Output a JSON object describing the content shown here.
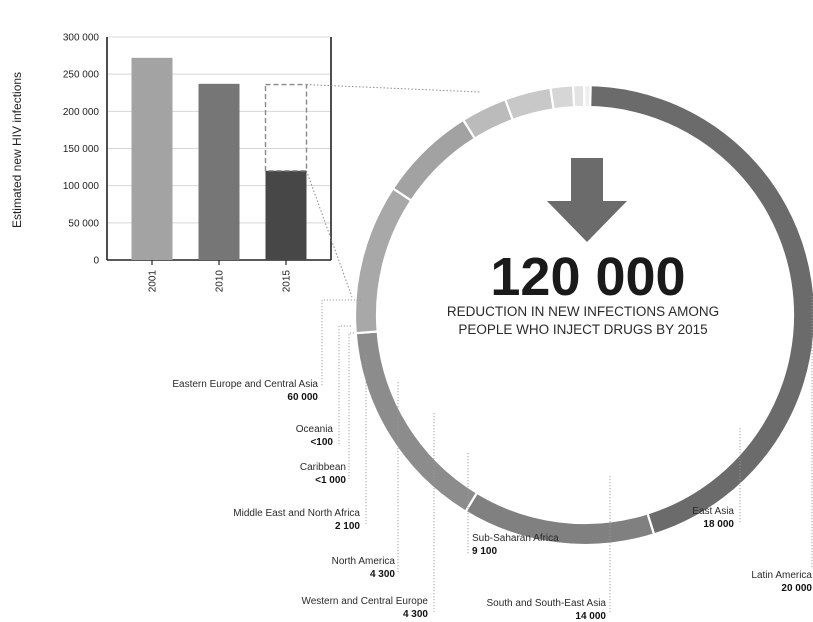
{
  "chart_data": [
    {
      "type": "bar",
      "ylabel": "Estimated new HIV infections",
      "categories": [
        "2001",
        "2010",
        "2015"
      ],
      "values": [
        272000,
        237000,
        120000
      ],
      "target_2015": 236000,
      "ylim": [
        0,
        300000
      ],
      "yticks": [
        0,
        50000,
        100000,
        150000,
        200000,
        250000,
        300000
      ],
      "ytick_labels": [
        "0",
        "50 000",
        "100 000",
        "150 000",
        "200 000",
        "250 000",
        "300 000"
      ],
      "colors": [
        "#a3a3a3",
        "#767676",
        "#474747"
      ]
    },
    {
      "type": "pie",
      "headline": "120 000",
      "subtitle_lines": [
        "REDUCTION IN NEW INFECTIONS AMONG",
        "PEOPLE WHO INJECT DRUGS BY 2015"
      ],
      "regions": [
        {
          "name": "Eastern Europe and Central Asia",
          "value_label": "60 000",
          "value": 60000
        },
        {
          "name": "East Asia",
          "value_label": "18 000",
          "value": 18000
        },
        {
          "name": "Latin America",
          "value_label": "20 000",
          "value": 20000
        },
        {
          "name": "South and South-East Asia",
          "value_label": "14 000",
          "value": 14000
        },
        {
          "name": "Sub-Saharan Africa",
          "value_label": "9 100",
          "value": 9100
        },
        {
          "name": "Western and Central Europe",
          "value_label": "4 300",
          "value": 4300
        },
        {
          "name": "North America",
          "value_label": "4 300",
          "value": 4300
        },
        {
          "name": "Middle East and North Africa",
          "value_label": "2 100",
          "value": 2100
        },
        {
          "name": "Caribbean",
          "value_label": "<1 000",
          "value": 1000
        },
        {
          "name": "Oceania",
          "value_label": "<100",
          "value": 100
        }
      ],
      "colors": {
        "Eastern Europe and Central Asia": "#6b6b6b",
        "East Asia": "#808080",
        "Latin America": "#8c8c8c",
        "South and South-East Asia": "#a8a8a8",
        "Sub-Saharan Africa": "#a2a2a2",
        "Western and Central Europe": "#bbbbbb",
        "North America": "#c8c8c8",
        "Middle East and North Africa": "#d6d6d6",
        "Caribbean": "#e3e3e3",
        "Oceania": "#eeeeee",
        "arrow": "#6b6b6b"
      }
    }
  ]
}
